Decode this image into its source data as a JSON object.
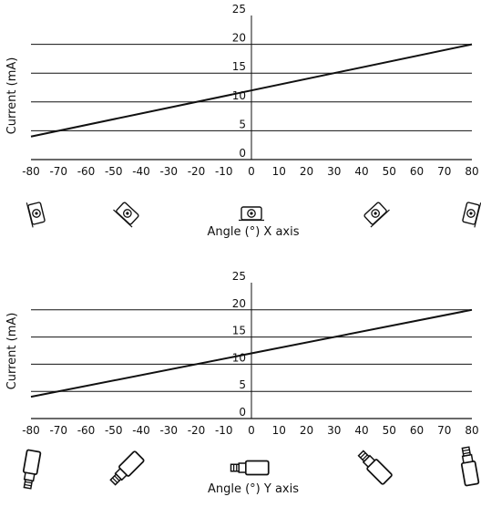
{
  "chart_data": [
    {
      "type": "line",
      "xlabel": "Angle (°) X axis",
      "ylabel": "Current (mA)",
      "xlim": [
        -80,
        80
      ],
      "ylim": [
        0,
        25
      ],
      "x_ticks": [
        "-80",
        "-70",
        "-60",
        "-50",
        "-40",
        "-30",
        "-20",
        "-10",
        "0",
        "10",
        "20",
        "30",
        "40",
        "50",
        "60",
        "70",
        "80"
      ],
      "y_ticks": [
        "0",
        "5",
        "10",
        "15",
        "20",
        "25"
      ],
      "grid": "horizontal",
      "series": [
        {
          "x": [
            -80,
            80
          ],
          "y": [
            4,
            20
          ]
        }
      ],
      "sensor_icon_angles": [
        -80,
        -45,
        0,
        45,
        80
      ],
      "sensor_icon": "sensor-x-orientation-icon"
    },
    {
      "type": "line",
      "xlabel": "Angle (°) Y axis",
      "ylabel": "Current (mA)",
      "xlim": [
        -80,
        80
      ],
      "ylim": [
        0,
        25
      ],
      "x_ticks": [
        "-80",
        "-70",
        "-60",
        "-50",
        "-40",
        "-30",
        "-20",
        "-10",
        "0",
        "10",
        "20",
        "30",
        "40",
        "50",
        "60",
        "70",
        "80"
      ],
      "y_ticks": [
        "0",
        "5",
        "10",
        "15",
        "20",
        "25"
      ],
      "grid": "horizontal",
      "series": [
        {
          "x": [
            -80,
            80
          ],
          "y": [
            4,
            20
          ]
        }
      ],
      "sensor_icon_angles": [
        -80,
        -45,
        0,
        45,
        80
      ],
      "sensor_icon": "sensor-y-orientation-icon"
    }
  ]
}
